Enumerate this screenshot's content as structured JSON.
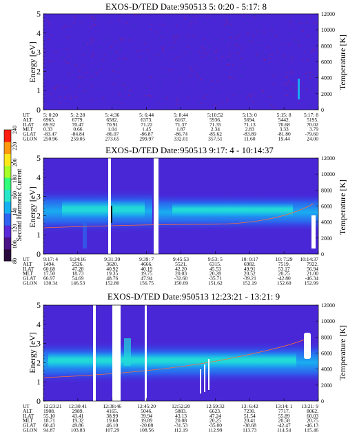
{
  "colorbar": {
    "label": "Second Harmonic Current",
    "ticks": [
      "240",
      "220",
      "200",
      "180",
      "160",
      "140",
      "120",
      "100",
      "80"
    ],
    "colors": [
      "#2a0a3c",
      "#4b1388",
      "#5a2ad8",
      "#2f63f0",
      "#16b0f0",
      "#28e6c8",
      "#33ff7a",
      "#a8ff28",
      "#ffe81a",
      "#ff9a10",
      "#ff1e10"
    ]
  },
  "chart_data": [
    {
      "type": "heatmap",
      "title": "EXOS-D/TED   Date:950513  5: 0:20 - 5:17: 8",
      "ylabel": "Energy [eV]",
      "y2label": "Temperature [K]",
      "ylim": [
        0,
        5
      ],
      "y2lim": [
        0,
        12000
      ],
      "yticks": [
        "0",
        "1",
        "2",
        "3",
        "4",
        "5"
      ],
      "y2ticks": [
        "0",
        "2000",
        "4000",
        "6000",
        "8000",
        "10000",
        "12000"
      ],
      "xaxis_row_labels": [
        "UT",
        "ALT",
        "ILAT",
        "MLT",
        "GLAT",
        "GLON"
      ],
      "xaxis_columns": [
        [
          "5: 0:20",
          "6965.",
          "69.92",
          "0.33",
          "-83.47",
          "250.96"
        ],
        [
          "5: 2:28",
          "6779.",
          "70.47",
          "0.66",
          "-84.84",
          "259.05"
        ],
        [
          "5: 4:36",
          "6582.",
          "70.91",
          "1.04",
          "-86.07",
          "273.65"
        ],
        [
          "5: 6:44",
          "6373.",
          "71.22",
          "1.45",
          "-86.87",
          "299.97"
        ],
        [
          "5: 8:44",
          "6167.",
          "71.37",
          "1.87",
          "-86.74",
          "332.01"
        ],
        [
          "5:10:52",
          "5936.",
          "71.35",
          "2.34",
          "-85.62",
          "357.51"
        ],
        [
          "5:13: 0",
          "5694.",
          "71.13",
          "2.83",
          "-83.89",
          "11.60"
        ],
        [
          "5:15: 8",
          "5442.",
          "70.68",
          "3.33",
          "-81.80",
          "19.44"
        ],
        [
          "5:17: 8",
          "5195.",
          "70.02",
          "3.79",
          "-79.60",
          "24.00"
        ]
      ],
      "background_level": 100
    },
    {
      "type": "heatmap",
      "title": "EXOS-D/TED   Date:950513  9:17: 4 - 10:14:37",
      "ylabel": "Energy [eV]",
      "y2label": "Temperature [K]",
      "ylim": [
        0,
        5
      ],
      "y2lim": [
        0,
        12000
      ],
      "yticks": [
        "0",
        "1",
        "2",
        "3",
        "4",
        "5"
      ],
      "y2ticks": [
        "0",
        "2000",
        "4000",
        "6000",
        "8000",
        "10000",
        "12000"
      ],
      "xaxis_row_labels": [
        "UT",
        "ALT",
        "ILAT",
        "MLT",
        "GLAT",
        "GLON"
      ],
      "xaxis_columns": [
        [
          "9:17: 4",
          "1494.",
          "60.68",
          "17.50",
          "66.97",
          "130.34"
        ],
        [
          "9:24:16",
          "2526.",
          "47.28",
          "18.73",
          "54.69",
          "146.53"
        ],
        [
          "9:31:39",
          "3620.",
          "40.92",
          "19.35",
          "48.76",
          "152.80"
        ],
        [
          "9:39: 7",
          "4666.",
          "40.19",
          "19.75",
          "47.94",
          "156.75"
        ],
        [
          "9:45:53",
          "5521.",
          "42.20",
          "20.03",
          "-32.60",
          "150.69"
        ],
        [
          "9:53: 5",
          "6315.",
          "45.53",
          "20.28",
          "-35.71",
          "151.62"
        ],
        [
          "10: 0:17",
          "6982.",
          "49.91",
          "20.52",
          "-39.21",
          "152.19"
        ],
        [
          "10: 7:29",
          "7519.",
          "53.17",
          "20.75",
          "-42.80",
          "152.60"
        ],
        [
          "10:14:37",
          "7922.",
          "56.94",
          "21.00",
          "-46.34",
          "152.99"
        ]
      ],
      "background_level": 100
    },
    {
      "type": "heatmap",
      "title": "EXOS-D/TED   Date:950513  12:23:21 - 13:21: 9",
      "ylabel": "Energy [eV]",
      "y2label": "Temperature [K]",
      "ylim": [
        0,
        5
      ],
      "y2lim": [
        0,
        12000
      ],
      "yticks": [
        "0",
        "1",
        "2",
        "3",
        "4",
        "5"
      ],
      "y2ticks": [
        "0",
        "2000",
        "4000",
        "6000",
        "8000",
        "10000",
        "12000"
      ],
      "xaxis_row_labels": [
        "UT",
        "ALT",
        "ILAT",
        "MLT",
        "GLAT",
        "GLON"
      ],
      "xaxis_columns": [
        [
          "12:23:21",
          "1908.",
          "55.10",
          "18.71",
          "60.43",
          "94.87"
        ],
        [
          "12:30:41",
          "2989.",
          "43.41",
          "19.32",
          "49.86",
          "103.83"
        ],
        [
          "12:38:46",
          "4165.",
          "38.99",
          "19.68",
          "46.10",
          "107.29"
        ],
        [
          "12:45:20",
          "5046.",
          "39.94",
          "19.89",
          "-20.08",
          "108.56"
        ],
        [
          "12:52:20",
          "5883.",
          "43.13",
          "20.08",
          "-31.53",
          "112.19"
        ],
        [
          "12:59:32",
          "6623.",
          "47.24",
          "20.25",
          "-35.00",
          "112.99"
        ],
        [
          "13: 6:42",
          "7230.",
          "51.54",
          "20.41",
          "-38.68",
          "113.73"
        ],
        [
          "13:14: 1",
          "7717.",
          "55.89",
          "20.58",
          "-42.47",
          "114.54"
        ],
        [
          "13:21: 9",
          "8062.",
          "60.03",
          "20.75",
          "-46.13",
          "115.46"
        ]
      ],
      "background_level": 100
    }
  ]
}
